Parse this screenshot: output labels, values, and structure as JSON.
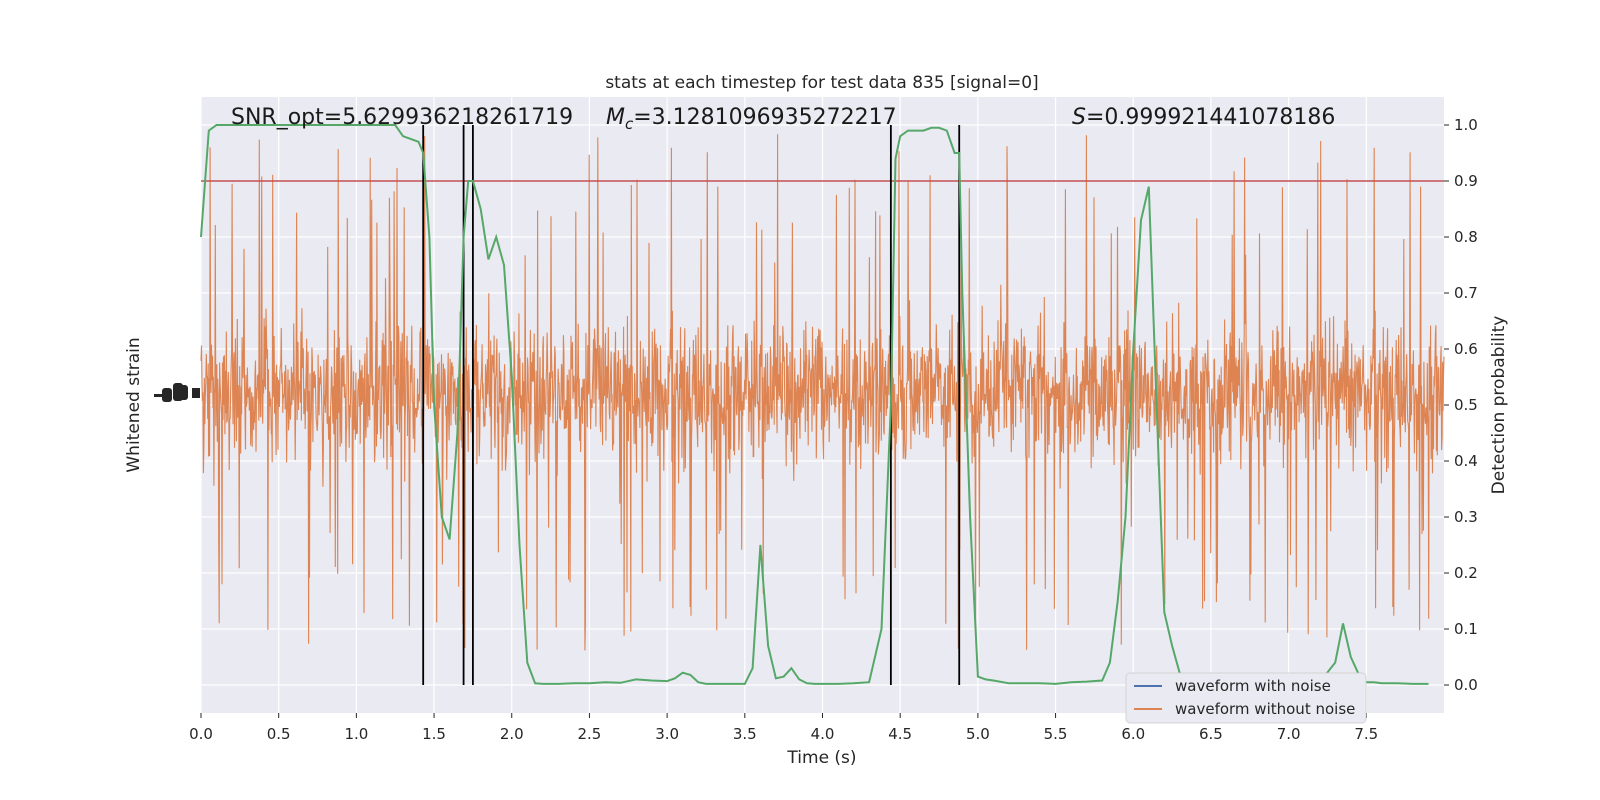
{
  "chart_data": {
    "type": "line",
    "title": "stats at each timestep for test data 835 [signal=0]",
    "xlabel": "Time (s)",
    "ylabel_left": "Whitened strain",
    "ylabel_right": "Detection probability",
    "xlim": [
      0.0,
      8.0
    ],
    "ylim_right": [
      -0.05,
      1.05
    ],
    "x_ticks": [
      "0.0",
      "0.5",
      "1.0",
      "1.5",
      "2.0",
      "2.5",
      "3.0",
      "3.5",
      "4.0",
      "4.5",
      "5.0",
      "5.5",
      "6.0",
      "6.5",
      "7.0",
      "7.5"
    ],
    "x_tick_values": [
      0.0,
      0.5,
      1.0,
      1.5,
      2.0,
      2.5,
      3.0,
      3.5,
      4.0,
      4.5,
      5.0,
      5.5,
      6.0,
      6.5,
      7.0,
      7.5
    ],
    "y_right_ticks": [
      "0.0",
      "0.1",
      "0.2",
      "0.3",
      "0.4",
      "0.5",
      "0.6",
      "0.7",
      "0.8",
      "0.9",
      "1.0"
    ],
    "y_right_tick_values": [
      0.0,
      0.1,
      0.2,
      0.3,
      0.4,
      0.5,
      0.6,
      0.7,
      0.8,
      0.9,
      1.0
    ],
    "annotations": {
      "snr": "SNR_opt=5.629936218261719",
      "mc_symbol": "M",
      "mc_subscript": "c",
      "mc_value": "=3.1281096935272217",
      "s_symbol": "S",
      "s_value": "=0.999921441078186"
    },
    "threshold": 0.9,
    "vertical_lines": [
      1.43,
      1.69,
      1.75,
      4.44,
      4.88
    ],
    "detection_probability": {
      "x": [
        0.0,
        0.05,
        0.1,
        0.2,
        0.3,
        0.5,
        0.7,
        0.9,
        1.0,
        1.1,
        1.2,
        1.25,
        1.3,
        1.4,
        1.43,
        1.47,
        1.5,
        1.55,
        1.6,
        1.65,
        1.69,
        1.72,
        1.75,
        1.8,
        1.85,
        1.9,
        1.95,
        2.0,
        2.05,
        2.1,
        2.15,
        2.2,
        2.3,
        2.4,
        2.5,
        2.6,
        2.7,
        2.8,
        2.9,
        3.0,
        3.05,
        3.1,
        3.15,
        3.2,
        3.25,
        3.3,
        3.4,
        3.5,
        3.55,
        3.6,
        3.65,
        3.7,
        3.75,
        3.8,
        3.85,
        3.9,
        3.95,
        4.0,
        4.1,
        4.2,
        4.3,
        4.38,
        4.44,
        4.47,
        4.5,
        4.55,
        4.6,
        4.65,
        4.7,
        4.75,
        4.8,
        4.85,
        4.88,
        4.9,
        4.95,
        5.0,
        5.05,
        5.1,
        5.2,
        5.3,
        5.4,
        5.5,
        5.6,
        5.7,
        5.8,
        5.85,
        5.9,
        5.95,
        6.0,
        6.05,
        6.1,
        6.15,
        6.2,
        6.25,
        6.3,
        6.35,
        6.4,
        6.5,
        6.6,
        6.7,
        6.8,
        6.9,
        7.0,
        7.1,
        7.2,
        7.3,
        7.35,
        7.4,
        7.45,
        7.5,
        7.55,
        7.6,
        7.7,
        7.8,
        7.9
      ],
      "y": [
        0.8,
        0.99,
        1.0,
        1.0,
        1.0,
        1.0,
        1.0,
        1.0,
        1.0,
        1.0,
        1.0,
        1.0,
        0.98,
        0.97,
        0.95,
        0.8,
        0.5,
        0.3,
        0.26,
        0.45,
        0.8,
        0.9,
        0.9,
        0.85,
        0.76,
        0.8,
        0.75,
        0.55,
        0.25,
        0.04,
        0.003,
        0.002,
        0.002,
        0.003,
        0.003,
        0.005,
        0.004,
        0.01,
        0.008,
        0.007,
        0.012,
        0.022,
        0.018,
        0.005,
        0.002,
        0.002,
        0.002,
        0.002,
        0.03,
        0.25,
        0.07,
        0.012,
        0.015,
        0.03,
        0.01,
        0.003,
        0.002,
        0.002,
        0.002,
        0.003,
        0.005,
        0.1,
        0.5,
        0.94,
        0.98,
        0.99,
        0.99,
        0.99,
        0.995,
        0.995,
        0.99,
        0.95,
        0.95,
        0.7,
        0.3,
        0.015,
        0.01,
        0.008,
        0.003,
        0.003,
        0.003,
        0.002,
        0.005,
        0.006,
        0.008,
        0.04,
        0.15,
        0.3,
        0.6,
        0.83,
        0.89,
        0.5,
        0.13,
        0.07,
        0.02,
        0.005,
        0.003,
        0.003,
        0.003,
        0.003,
        0.003,
        0.003,
        0.003,
        0.003,
        0.005,
        0.04,
        0.11,
        0.05,
        0.02,
        0.005,
        0.005,
        0.003,
        0.003,
        0.002,
        0.002
      ]
    },
    "series": [
      {
        "name": "waveform with noise",
        "color": "#4c72b0"
      },
      {
        "name": "waveform without noise",
        "color": "#dd8452"
      },
      {
        "color": "#55a868",
        "role": "detection-probability"
      }
    ],
    "threshold_color": "#c44e52",
    "strain_series_color": "#dd8452",
    "grid": true,
    "legend_position": "lower-right",
    "style": "seaborn-darkgrid"
  }
}
